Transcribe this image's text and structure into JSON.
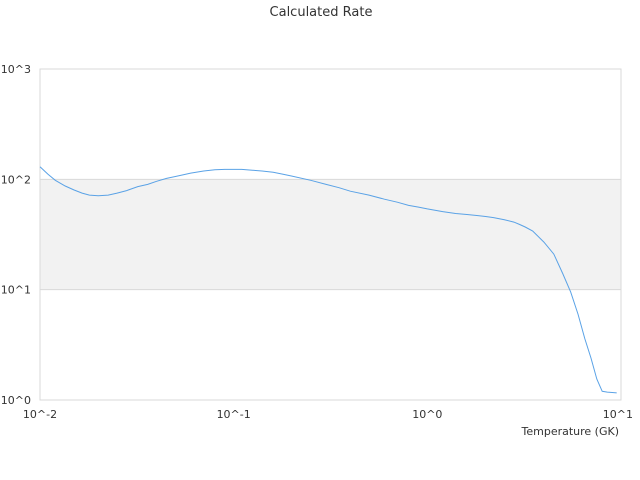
{
  "chart_data": {
    "type": "line",
    "title": "Calculated Rate",
    "xlabel": "Temperature (GK)",
    "ylabel": "",
    "xscale": "log",
    "yscale": "log",
    "xlim": [
      0.01,
      10
    ],
    "ylim": [
      1,
      1000
    ],
    "x_tick_labels": [
      "10^-2",
      "10^-1",
      "10^0",
      "10^1"
    ],
    "y_tick_labels": [
      "10^0",
      "10^1",
      "10^2",
      "10^3"
    ],
    "grid": true,
    "band_fill": "#f2f2f2",
    "band_range": [
      10,
      100
    ],
    "line_color": "#5aa2e6",
    "series": [
      {
        "x": [
          0.01,
          0.011,
          0.012,
          0.0135,
          0.015,
          0.0165,
          0.018,
          0.02,
          0.0225,
          0.025,
          0.028,
          0.032,
          0.036,
          0.04,
          0.045,
          0.05,
          0.055,
          0.06,
          0.07,
          0.08,
          0.09,
          0.1,
          0.11,
          0.125,
          0.14,
          0.16,
          0.18,
          0.2,
          0.25,
          0.3,
          0.35,
          0.4,
          0.5,
          0.6,
          0.7,
          0.8,
          0.9,
          1.0,
          1.2,
          1.4,
          1.6,
          1.8,
          2.0,
          2.2,
          2.5,
          2.8,
          3.0,
          3.2,
          3.5,
          4.0,
          4.5,
          5.0,
          5.5,
          6.0,
          6.5,
          7.0,
          7.5,
          8.0,
          8.5,
          9.0,
          9.5
        ],
        "y": [
          130,
          111,
          98,
          87,
          80,
          75,
          72,
          71,
          72,
          75,
          79,
          86,
          90,
          96,
          102,
          106,
          110,
          114,
          119,
          122,
          123,
          123,
          123,
          121,
          119,
          116,
          111,
          107,
          98,
          90,
          84,
          78,
          72,
          66,
          62,
          58,
          56,
          54,
          51,
          49,
          48,
          47,
          46,
          45,
          43,
          41,
          39,
          37,
          34,
          27,
          21,
          14,
          9.5,
          6.0,
          3.6,
          2.4,
          1.55,
          1.2,
          1.18,
          1.17,
          1.16
        ]
      }
    ]
  }
}
